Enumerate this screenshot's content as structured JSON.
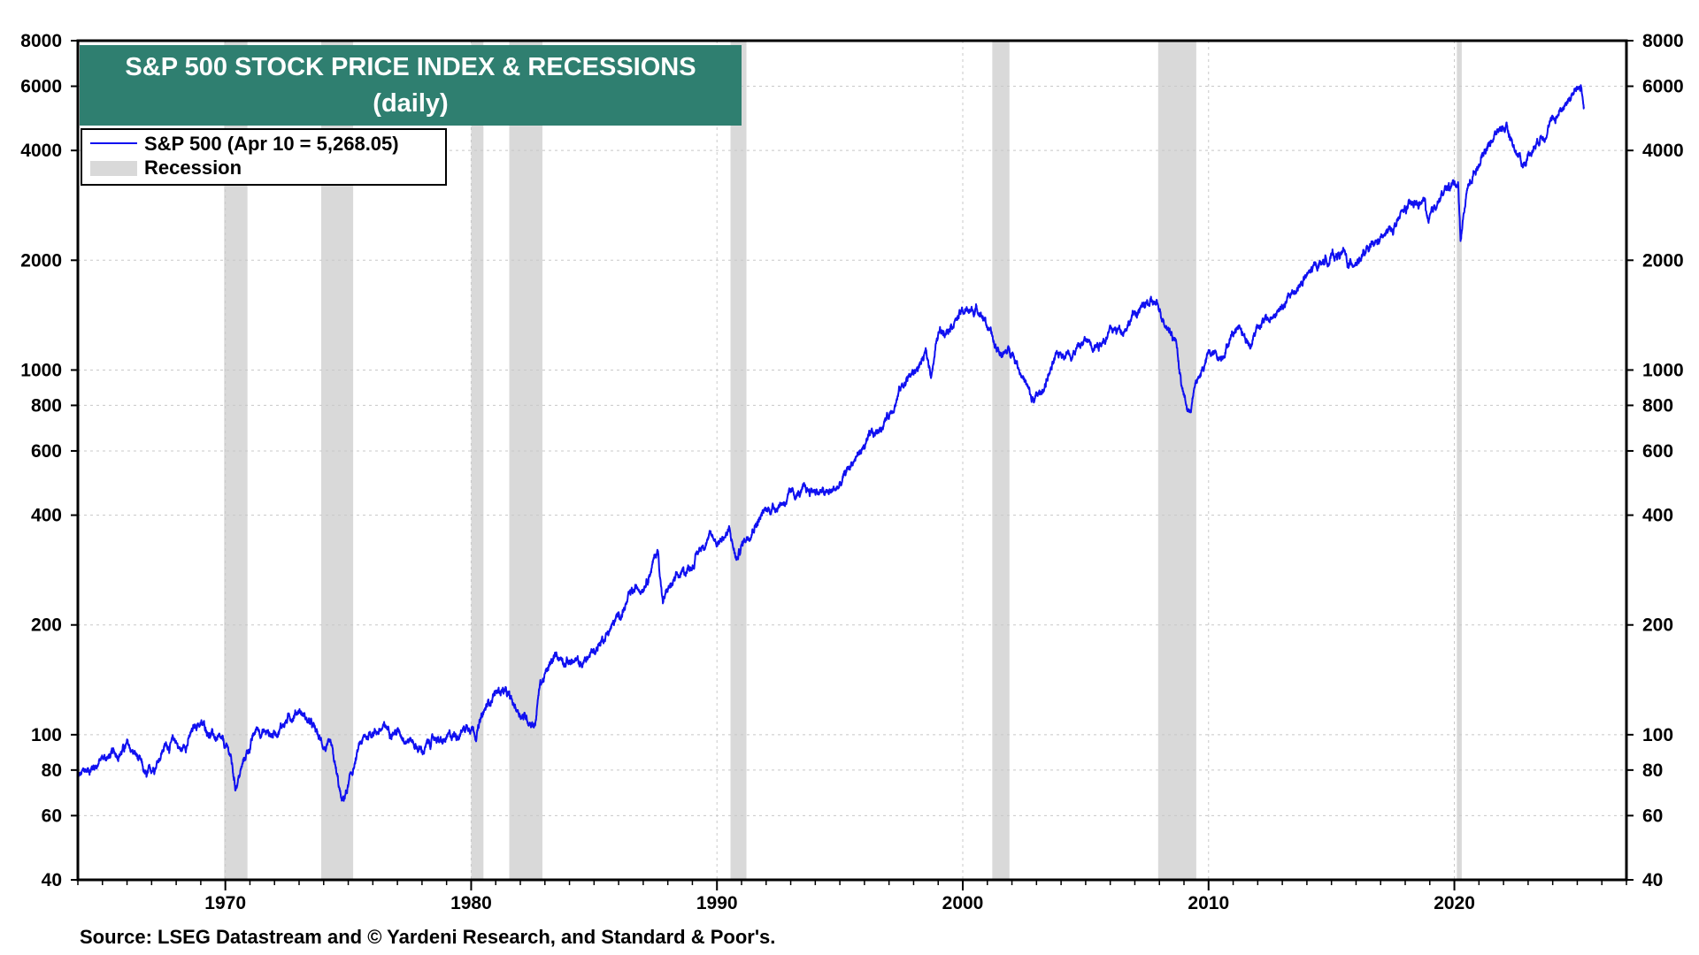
{
  "chart_data": {
    "type": "line",
    "title": "S&P 500 STOCK PRICE INDEX & RECESSIONS",
    "subtitle": "(daily)",
    "y_scale": "log",
    "ylim": [
      40,
      8000
    ],
    "xlim": [
      1964,
      2027
    ],
    "y_ticks": [
      40,
      60,
      80,
      100,
      200,
      400,
      600,
      800,
      1000,
      2000,
      4000,
      6000,
      8000
    ],
    "y_tick_labels": [
      "40",
      "60",
      "80",
      "100",
      "200",
      "400",
      "600",
      "800",
      "1000",
      "2000",
      "4000",
      "6000",
      "8000"
    ],
    "x_ticks": [
      1970,
      1980,
      1990,
      2000,
      2010,
      2020
    ],
    "x_tick_labels": [
      "1970",
      "1980",
      "1990",
      "2000",
      "2010",
      "2020"
    ],
    "legend": {
      "placement": "top-left",
      "series_label": "S&P 500 (Apr 10 = 5,268.05)",
      "recession_label": "Recession"
    },
    "source": "Source: LSEG Datastream and © Yardeni Research, and Standard & Poor's.",
    "colors": {
      "line": "#1010f0",
      "recession": "#d9d9d9",
      "title_bg": "#2f7f70"
    },
    "recessions": [
      [
        1969.95,
        1970.9
      ],
      [
        1973.9,
        1975.2
      ],
      [
        1980.0,
        1980.5
      ],
      [
        1981.55,
        1982.9
      ],
      [
        1990.55,
        1991.2
      ],
      [
        2001.2,
        2001.9
      ],
      [
        2007.95,
        2009.5
      ],
      [
        2020.1,
        2020.3
      ]
    ],
    "series": [
      {
        "name": "S&P 500",
        "x": [
          1964.0,
          1965.0,
          1965.5,
          1966.0,
          1966.4,
          1966.8,
          1967.5,
          1968.0,
          1968.2,
          1968.9,
          1969.3,
          1969.9,
          1970.2,
          1970.4,
          1970.9,
          1971.3,
          1971.9,
          1972.5,
          1973.0,
          1973.5,
          1973.9,
          1974.3,
          1974.5,
          1974.75,
          1975.0,
          1975.5,
          1976.0,
          1976.8,
          1977.5,
          1978.0,
          1978.6,
          1978.8,
          1979.5,
          1980.0,
          1980.2,
          1980.9,
          1981.3,
          1981.7,
          1982.2,
          1982.6,
          1982.8,
          1983.0,
          1983.5,
          1984.0,
          1984.5,
          1985.0,
          1985.5,
          1986.0,
          1986.5,
          1987.0,
          1987.6,
          1987.8,
          1988.0,
          1988.5,
          1989.0,
          1989.6,
          1990.0,
          1990.5,
          1990.8,
          1991.0,
          1991.5,
          1992.0,
          1993.0,
          1994.0,
          1994.5,
          1995.0,
          1995.5,
          1996.0,
          1996.5,
          1997.0,
          1997.5,
          1997.8,
          1998.0,
          1998.5,
          1998.7,
          1999.0,
          1999.5,
          2000.0,
          2000.7,
          2001.0,
          2001.3,
          2001.7,
          2002.0,
          2002.5,
          2002.8,
          2003.2,
          2003.5,
          2004.0,
          2004.5,
          2005.0,
          2005.5,
          2006.0,
          2006.5,
          2007.0,
          2007.5,
          2007.8,
          2008.3,
          2008.7,
          2008.9,
          2009.2,
          2009.5,
          2010.0,
          2010.5,
          2011.0,
          2011.3,
          2011.7,
          2012.0,
          2012.5,
          2013.0,
          2013.5,
          2014.0,
          2014.5,
          2015.0,
          2015.5,
          2015.7,
          2016.0,
          2016.5,
          2017.0,
          2017.5,
          2018.0,
          2018.8,
          2018.95,
          2019.3,
          2019.9,
          2020.15,
          2020.25,
          2020.5,
          2021.0,
          2021.5,
          2022.0,
          2022.3,
          2022.8,
          2023.0,
          2023.5,
          2024.0,
          2024.5,
          2025.0,
          2025.15,
          2025.27
        ],
        "values": [
          76,
          86,
          88,
          93,
          87,
          75,
          93,
          96,
          90,
          108,
          103,
          93,
          88,
          72,
          90,
          104,
          100,
          110,
          118,
          106,
          95,
          90,
          78,
          64,
          72,
          94,
          103,
          104,
          98,
          90,
          99,
          94,
          102,
          108,
          102,
          130,
          133,
          120,
          112,
          108,
          138,
          145,
          165,
          160,
          155,
          170,
          190,
          210,
          240,
          260,
          320,
          230,
          250,
          270,
          295,
          350,
          340,
          360,
          300,
          330,
          380,
          410,
          450,
          470,
          455,
          480,
          560,
          620,
          670,
          760,
          900,
          960,
          980,
          1100,
          980,
          1250,
          1360,
          1440,
          1470,
          1330,
          1150,
          1100,
          1140,
          950,
          820,
          860,
          980,
          1120,
          1130,
          1200,
          1190,
          1270,
          1300,
          1430,
          1510,
          1520,
          1350,
          1200,
          900,
          760,
          920,
          1100,
          1090,
          1280,
          1340,
          1150,
          1350,
          1370,
          1480,
          1650,
          1800,
          1960,
          2050,
          2100,
          1920,
          2020,
          2100,
          2270,
          2450,
          2750,
          2900,
          2450,
          2920,
          3230,
          3300,
          2300,
          3100,
          3750,
          4300,
          4700,
          4300,
          3650,
          3900,
          4400,
          4800,
          5400,
          5900,
          6000,
          5268
        ]
      }
    ]
  }
}
